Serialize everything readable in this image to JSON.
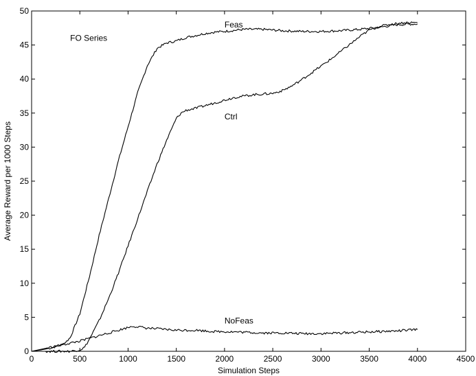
{
  "chart_data": {
    "type": "line",
    "title": "",
    "xlabel": "Simulation Steps",
    "ylabel": "Average Reward per 1000 Steps",
    "xlim": [
      0,
      4500
    ],
    "ylim": [
      0,
      50
    ],
    "xticks": [
      0,
      500,
      1000,
      1500,
      2000,
      2500,
      3000,
      3500,
      4000,
      4500
    ],
    "yticks": [
      0,
      5,
      10,
      15,
      20,
      25,
      30,
      35,
      40,
      45,
      50
    ],
    "grid": false,
    "legend": "none",
    "annotations": [
      {
        "text": "FO Series",
        "x": 400,
        "y": 46
      },
      {
        "text": "Feas",
        "x": 2000,
        "y": 48
      },
      {
        "text": "Ctrl",
        "x": 2000,
        "y": 34.5
      },
      {
        "text": "NoFeas",
        "x": 2000,
        "y": 4.5
      }
    ],
    "series": [
      {
        "name": "Feas",
        "color": "#000000",
        "x": [
          0,
          100,
          200,
          300,
          350,
          400,
          500,
          600,
          700,
          800,
          900,
          1000,
          1100,
          1200,
          1300,
          1400,
          1500,
          1600,
          1700,
          1800,
          1900,
          2000,
          2200,
          2400,
          2600,
          2800,
          3000,
          3200,
          3400,
          3600,
          3800,
          4000
        ],
        "y": [
          0,
          0.2,
          0.5,
          0.9,
          1.3,
          2.0,
          5.5,
          11,
          17,
          22.5,
          28,
          33,
          38,
          42,
          44.5,
          45.3,
          45.6,
          46.1,
          46.4,
          46.7,
          46.9,
          47.0,
          47.3,
          47.3,
          47.1,
          47.0,
          47.0,
          47.1,
          47.3,
          47.6,
          48.0,
          48.1
        ]
      },
      {
        "name": "Ctrl",
        "color": "#000000",
        "x": [
          0,
          350,
          400,
          450,
          500,
          550,
          600,
          700,
          800,
          900,
          1000,
          1100,
          1200,
          1300,
          1400,
          1500,
          1550,
          1600,
          1700,
          1800,
          1900,
          2000,
          2100,
          2200,
          2300,
          2400,
          2500,
          2600,
          2700,
          2800,
          2900,
          3000,
          3100,
          3200,
          3300,
          3400,
          3500,
          3600,
          3700,
          3800,
          3900,
          4000
        ],
        "y": [
          0,
          0,
          0,
          0.1,
          0.2,
          0.6,
          1.8,
          4.5,
          7.8,
          11.5,
          15.5,
          19.5,
          23.5,
          27.5,
          31.0,
          34.2,
          35.0,
          35.4,
          35.7,
          36.1,
          36.5,
          36.9,
          37.3,
          37.5,
          37.7,
          37.8,
          37.9,
          38.3,
          39.0,
          39.9,
          40.9,
          41.9,
          42.9,
          44.0,
          45.1,
          46.2,
          47.2,
          47.7,
          48.0,
          48.2,
          48.3,
          48.3
        ]
      },
      {
        "name": "NoFeas",
        "color": "#000000",
        "x": [
          0,
          100,
          200,
          300,
          400,
          500,
          600,
          700,
          800,
          900,
          1000,
          1050,
          1100,
          1200,
          1300,
          1400,
          1500,
          1600,
          1700,
          1800,
          1900,
          2000,
          2200,
          2400,
          2600,
          2800,
          3000,
          3200,
          3400,
          3600,
          3800,
          4000
        ],
        "y": [
          0,
          0.3,
          0.6,
          0.9,
          1.2,
          1.5,
          1.9,
          2.3,
          2.7,
          3.1,
          3.5,
          3.7,
          3.6,
          3.4,
          3.3,
          3.2,
          3.1,
          3.1,
          3.1,
          3.0,
          2.9,
          2.9,
          2.8,
          2.7,
          2.7,
          2.6,
          2.6,
          2.7,
          2.8,
          2.9,
          3.0,
          3.2
        ]
      }
    ]
  }
}
